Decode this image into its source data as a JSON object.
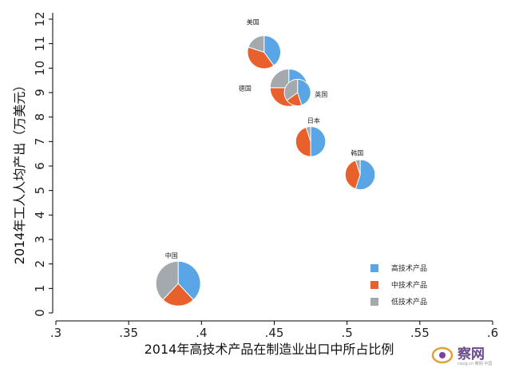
{
  "chart_data": {
    "type": "scatter",
    "subtype": "pie-bubble",
    "title": "",
    "xlabel": "2014年高技术产品在制造业出口中所占比例",
    "ylabel": "2014年工人人均产出（万美元）",
    "xlim": [
      0.3,
      0.6
    ],
    "ylim": [
      0,
      12
    ],
    "x_ticks": [
      ".3",
      ".35",
      ".4",
      ".45",
      ".5",
      ".55",
      ".6"
    ],
    "y_ticks": [
      "0",
      "1",
      "2",
      "3",
      "4",
      "5",
      "6",
      "7",
      "8",
      "9",
      "10",
      "11",
      "12"
    ],
    "grid": false,
    "legend_position": "bottom-right",
    "categories": [
      "高技术产品",
      "中技术产品",
      "低技术产品"
    ],
    "category_colors": [
      "#5aa5e6",
      "#e8612c",
      "#a3a9ad"
    ],
    "points": [
      {
        "label": "美国",
        "x": 0.443,
        "y": 10.65,
        "shares": [
          0.4,
          0.4,
          0.2
        ],
        "size": 0.55
      },
      {
        "label": "德国",
        "x": 0.46,
        "y": 9.2,
        "shares": [
          0.25,
          0.5,
          0.25
        ],
        "size": 0.7
      },
      {
        "label": "英国",
        "x": 0.466,
        "y": 9.0,
        "shares": [
          0.45,
          0.2,
          0.35
        ],
        "size": 0.35
      },
      {
        "label": "日本",
        "x": 0.475,
        "y": 7.0,
        "shares": [
          0.5,
          0.45,
          0.05
        ],
        "size": 0.45
      },
      {
        "label": "韩国",
        "x": 0.509,
        "y": 5.65,
        "shares": [
          0.55,
          0.4,
          0.05
        ],
        "size": 0.45
      },
      {
        "label": "中国",
        "x": 0.384,
        "y": 1.2,
        "shares": [
          0.38,
          0.24,
          0.38
        ],
        "size": 1.0
      }
    ]
  },
  "watermark": {
    "text": "察网",
    "small": "cwzg.cn 察网 中国"
  }
}
